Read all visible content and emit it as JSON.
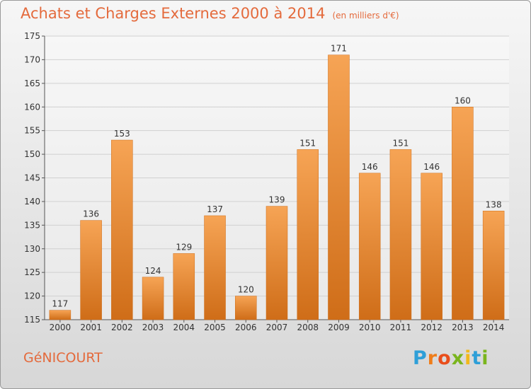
{
  "title": "Achats et Charges Externes 2000 à 2014",
  "subtitle": "(en milliers d'€)",
  "place_name": "GéNICOURT",
  "logo": {
    "text": "Proxiti",
    "colors": [
      "#2e9fd8",
      "#ef7d1a",
      "#e94e1b",
      "#7ab51d",
      "#f2b81b",
      "#2e9fd8",
      "#7ab51d"
    ]
  },
  "colors": {
    "bar": "#e8862f",
    "bar_light": "#f6a455",
    "bar_dark": "#cf6d18",
    "grid": "#d0d0d0",
    "title": "#e46a3c"
  },
  "chart_data": {
    "type": "bar",
    "title": "Achats et Charges Externes 2000 à 2014",
    "xlabel": "",
    "ylabel": "",
    "categories": [
      "2000",
      "2001",
      "2002",
      "2003",
      "2004",
      "2005",
      "2006",
      "2007",
      "2008",
      "2009",
      "2010",
      "2011",
      "2012",
      "2013",
      "2014"
    ],
    "values": [
      117,
      136,
      153,
      124,
      129,
      137,
      120,
      139,
      151,
      171,
      146,
      151,
      146,
      160,
      138
    ],
    "ylim": [
      115,
      175
    ],
    "yticks": [
      115,
      120,
      125,
      130,
      135,
      140,
      145,
      150,
      155,
      160,
      165,
      170,
      175
    ],
    "grid": true
  }
}
